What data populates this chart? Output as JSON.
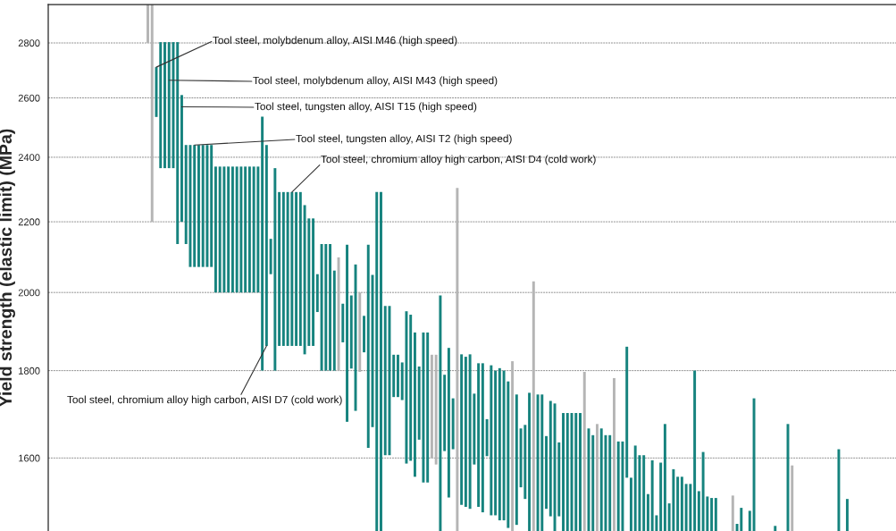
{
  "chart_data": {
    "type": "bar",
    "ylabel": "Yield strength (elastic limit) (MPa)",
    "categories": [
      null,
      null,
      null,
      null,
      null,
      null,
      null,
      null,
      null,
      null,
      null,
      null,
      null,
      null,
      null,
      null,
      null,
      null,
      null,
      null,
      null,
      null,
      null,
      null,
      null,
      null,
      null,
      null,
      null,
      null,
      null,
      null,
      null,
      null,
      null,
      null,
      null,
      null,
      null,
      null,
      null,
      null,
      null,
      null,
      null,
      null,
      null,
      null,
      null,
      null,
      null,
      null,
      null,
      null,
      null,
      null,
      null,
      null,
      null,
      null,
      null,
      null,
      null,
      null,
      null,
      null,
      null,
      null,
      null,
      null,
      null,
      null,
      null,
      null,
      null,
      null,
      null,
      null,
      null,
      null,
      null,
      null,
      null,
      null,
      null,
      null,
      null,
      null,
      null,
      null,
      null,
      null,
      null,
      null,
      null,
      null,
      null,
      null,
      null,
      null,
      null,
      null,
      null,
      null,
      null,
      null,
      null,
      null,
      null,
      null,
      null,
      null,
      null,
      null,
      null,
      null,
      null,
      null,
      null,
      null,
      null,
      null,
      null,
      null,
      null,
      null,
      null,
      null,
      null,
      null,
      null,
      null,
      null,
      null,
      null,
      null,
      null,
      null,
      null,
      null,
      null,
      null,
      null,
      null,
      null,
      null,
      null,
      null,
      null,
      null,
      null,
      null,
      null,
      null,
      null,
      null,
      null,
      null,
      null,
      null,
      null,
      null,
      null,
      null,
      null,
      null,
      null,
      null,
      null,
      null,
      null,
      null,
      null,
      null,
      null,
      null,
      null,
      null,
      null,
      null,
      null,
      null,
      null,
      null,
      null,
      null,
      null,
      null,
      null,
      null,
      null,
      null,
      null,
      null,
      null,
      null,
      null,
      null,
      null,
      null
    ],
    "values": [
      null,
      null,
      null,
      null,
      null,
      null,
      null,
      null,
      null,
      null,
      null,
      null,
      null,
      null,
      null,
      null,
      null,
      null,
      null,
      null,
      null,
      null,
      null,
      149,
      749,
      176,
      438,
      438,
      438,
      438,
      668,
      410,
      305,
      370,
      370,
      370,
      370,
      370,
      370,
      370,
      370,
      370,
      370,
      370,
      370,
      370,
      370,
      370,
      370,
      370,
      735,
      579,
      100,
      565,
      429,
      429,
      429,
      429,
      429,
      429,
      410,
      349,
      349,
      102,
      335,
      335,
      335,
      260,
      297,
      100,
      453,
      187,
      372,
      203,
      93,
      511,
      380,
      840,
      840,
      358,
      358,
      102,
      102,
      90,
      362,
      347,
      335,
      170,
      347,
      347,
      239,
      253,
      542,
      175,
      339,
      115,
      853,
      338,
      336,
      346,
      159,
      320,
      331,
      82,
      332,
      319,
      335,
      329,
      318,
      373,
      281,
      127,
      159,
      297,
      580,
      293,
      293,
      154,
      249,
      272,
      155,
      250,
      250,
      250,
      250,
      250,
      347,
      215,
      200,
      225,
      215,
      200,
      200,
      332,
      186,
      186,
      301,
      108,
      177,
      156,
      156,
      74,
      145,
      31,
      140,
      225,
      55,
      126,
      110,
      110,
      95,
      95,
      350,
      80,
      163,
      69,
      66,
      66,
      null,
      null,
      null,
      71,
      14,
      46,
      null,
      40,
      284,
      null,
      null,
      null,
      null,
      10,
      null,
      null,
      225,
      134,
      null,
      null,
      null,
      null,
      null,
      null,
      null,
      null,
      null,
      null,
      169,
      null,
      64,
      null,
      null,
      null,
      null,
      null,
      null,
      null,
      null,
      null,
      null,
      null
    ],
    "base": [
      null,
      null,
      null,
      null,
      null,
      null,
      null,
      null,
      null,
      null,
      null,
      null,
      null,
      null,
      null,
      null,
      null,
      null,
      null,
      null,
      null,
      null,
      null,
      2800,
      2200,
      2534,
      2365,
      2365,
      2365,
      2365,
      2135,
      2200,
      2135,
      2070,
      2070,
      2070,
      2070,
      2070,
      2070,
      2000,
      2000,
      2000,
      2000,
      2000,
      2000,
      2000,
      2000,
      2000,
      2000,
      2000,
      1800,
      1861,
      2050,
      1800,
      1861,
      1861,
      1861,
      1861,
      1861,
      1861,
      1840,
      1861,
      1861,
      1948,
      1800,
      1800,
      1800,
      1800,
      1800,
      1870,
      1680,
      1805,
      1705,
      1797,
      1845,
      1622,
      1668,
      1450,
      1450,
      1606,
      1606,
      1737,
      1737,
      1730,
      1588,
      1594,
      1560,
      1640,
      1548,
      1548,
      1600,
      1586,
      1450,
      1615,
      1517,
      1619,
      1450,
      1502,
      1498,
      1494,
      1586,
      1498,
      1487,
      1604,
      1481,
      1481,
      1471,
      1471,
      1456,
      1450,
      1462,
      1538,
      1514,
      1450,
      1450,
      1450,
      1450,
      1494,
      1479,
      1450,
      1479,
      1450,
      1450,
      1450,
      1450,
      1450,
      1450,
      1450,
      1450,
      1450,
      1450,
      1450,
      1450,
      1450,
      1450,
      1450,
      1558,
      1450,
      1450,
      1450,
      1450,
      1450,
      1450,
      1450,
      1450,
      1450,
      1450,
      1450,
      1450,
      1450,
      1450,
      1450,
      1450,
      1450,
      1450,
      1450,
      1450,
      1450,
      null,
      null,
      null,
      1450,
      1450,
      1450,
      null,
      1450,
      1450,
      null,
      null,
      null,
      null,
      1450,
      null,
      null,
      1450,
      1450,
      null,
      null,
      null,
      null,
      null,
      null,
      null,
      null,
      null,
      null,
      1450,
      null,
      1450,
      null,
      null,
      null,
      null,
      null,
      null,
      null,
      null,
      null,
      null,
      null
    ],
    "colors": [
      null,
      null,
      null,
      null,
      null,
      null,
      null,
      null,
      null,
      null,
      null,
      null,
      null,
      null,
      null,
      null,
      null,
      null,
      null,
      null,
      null,
      null,
      null,
      "#b5b5b5",
      "#b5b5b5",
      "#16837e",
      "#16837e",
      "#16837e",
      "#16837e",
      "#16837e",
      "#16837e",
      "#16837e",
      "#16837e",
      "#16837e",
      "#16837e",
      "#16837e",
      "#16837e",
      "#16837e",
      "#16837e",
      "#16837e",
      "#16837e",
      "#16837e",
      "#16837e",
      "#16837e",
      "#16837e",
      "#16837e",
      "#16837e",
      "#16837e",
      "#16837e",
      "#16837e",
      "#16837e",
      "#16837e",
      "#16837e",
      "#16837e",
      "#16837e",
      "#16837e",
      "#16837e",
      "#16837e",
      "#16837e",
      "#16837e",
      "#16837e",
      "#16837e",
      "#16837e",
      "#16837e",
      "#16837e",
      "#16837e",
      "#16837e",
      "#16837e",
      "#b5b5b5",
      "#16837e",
      "#16837e",
      "#16837e",
      "#16837e",
      "#b5b5b5",
      "#16837e",
      "#16837e",
      "#16837e",
      "#16837e",
      "#16837e",
      "#16837e",
      "#16837e",
      "#16837e",
      "#16837e",
      "#16837e",
      "#16837e",
      "#16837e",
      "#16837e",
      "#16837e",
      "#16837e",
      "#16837e",
      "#b5b5b5",
      "#b5b5b5",
      "#16837e",
      "#16837e",
      "#16837e",
      "#16837e",
      "#b5b5b5",
      "#16837e",
      "#16837e",
      "#16837e",
      "#16837e",
      "#16837e",
      "#16837e",
      "#16837e",
      "#16837e",
      "#16837e",
      "#16837e",
      "#16837e",
      "#16837e",
      "#b5b5b5",
      "#16837e",
      "#16837e",
      "#16837e",
      "#16837e",
      "#b5b5b5",
      "#16837e",
      "#16837e",
      "#16837e",
      "#16837e",
      "#16837e",
      "#16837e",
      "#16837e",
      "#16837e",
      "#16837e",
      "#16837e",
      "#16837e",
      "#b5b5b5",
      "#16837e",
      "#16837e",
      "#b5b5b5",
      "#16837e",
      "#16837e",
      "#16837e",
      "#b5b5b5",
      "#16837e",
      "#16837e",
      "#16837e",
      "#16837e",
      "#16837e",
      "#16837e",
      "#16837e",
      "#16837e",
      "#16837e",
      "#16837e",
      "#16837e",
      "#16837e",
      "#16837e",
      "#16837e",
      "#16837e",
      "#16837e",
      "#16837e",
      "#16837e",
      "#16837e",
      "#16837e",
      "#16837e",
      "#16837e",
      "#16837e",
      "#16837e",
      null,
      null,
      null,
      "#b5b5b5",
      "#16837e",
      "#16837e",
      null,
      "#16837e",
      "#16837e",
      null,
      null,
      null,
      null,
      "#16837e",
      null,
      null,
      "#16837e",
      "#b5b5b5",
      null,
      null,
      null,
      null,
      null,
      null,
      null,
      null,
      null,
      null,
      "#16837e",
      null,
      "#16837e",
      null,
      null,
      null,
      null,
      null,
      null,
      null,
      null,
      null,
      null,
      null
    ],
    "log": true,
    "ylim": [
      1450,
      2949
    ],
    "yticks": [
      1600,
      1800,
      2000,
      2200,
      2400,
      2600,
      2800
    ],
    "grid": "y",
    "annotations": [
      "Tool steel, molybdenum alloy, AISI M46 (high speed)",
      "Tool steel, molybdenum alloy, AISI M43 (high speed)",
      "Tool steel, tungsten alloy, AISI T15 (high speed)",
      "Tool steel, tungsten alloy, AISI T2 (high speed)",
      "Tool steel, chromium alloy high carbon, AISI D4 (cold work)",
      "Tool steel, chromium alloy high carbon, AISI D7 (cold work)"
    ]
  }
}
